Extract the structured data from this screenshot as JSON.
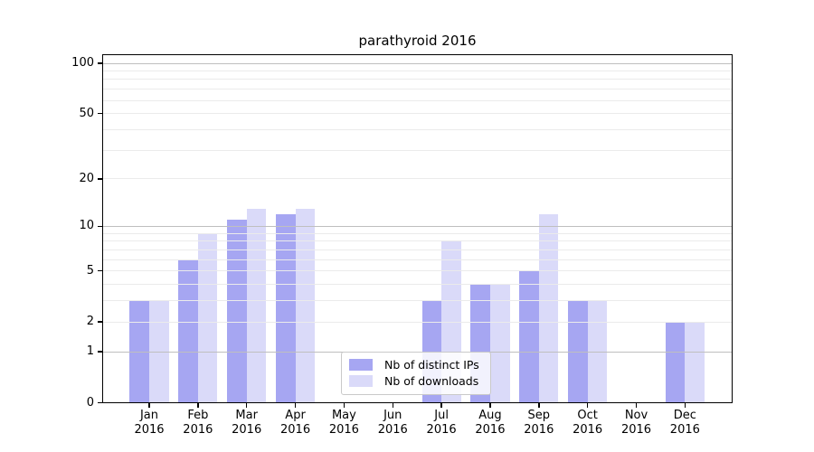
{
  "chart_data": {
    "type": "bar",
    "title": "parathyroid 2016",
    "categories": [
      "Jan",
      "Feb",
      "Mar",
      "Apr",
      "May",
      "Jun",
      "Jul",
      "Aug",
      "Sep",
      "Oct",
      "Nov",
      "Dec"
    ],
    "year": "2016",
    "series": [
      {
        "name": "Nb of distinct IPs",
        "color": "#a6a6f2",
        "values": [
          3,
          6,
          11,
          12,
          0,
          0,
          3,
          4,
          5,
          3,
          0,
          2
        ]
      },
      {
        "name": "Nb of downloads",
        "color": "#dadaf9",
        "values": [
          3,
          9,
          13,
          13,
          0,
          0,
          8,
          4,
          12,
          3,
          0,
          2
        ]
      }
    ],
    "xlabel": "",
    "ylabel": "",
    "y_scale": "log1p",
    "ylim": [
      0,
      100
    ],
    "y_ticks": [
      0,
      1,
      2,
      5,
      10,
      20,
      50,
      100
    ],
    "y_major_gridlines": [
      1,
      10,
      100
    ],
    "y_minor_gridlines": [
      2,
      3,
      4,
      5,
      6,
      7,
      8,
      9,
      20,
      30,
      40,
      50,
      60,
      70,
      80,
      90
    ],
    "grid": true,
    "legend_position": "bottom-center"
  }
}
